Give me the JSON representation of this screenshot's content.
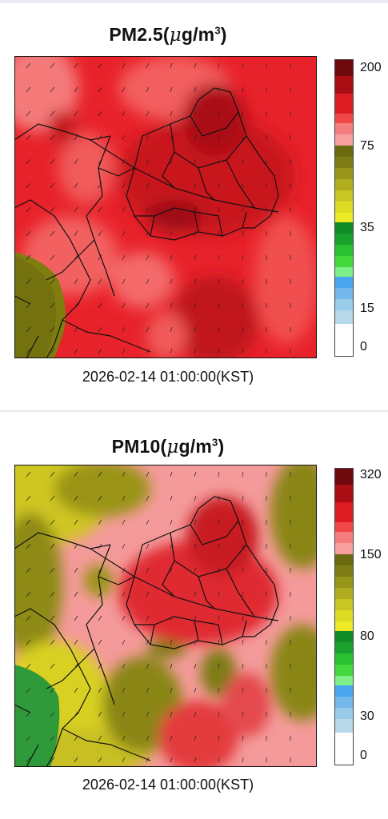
{
  "panels": [
    {
      "title_main": "PM2.5(",
      "title_mu": "μ",
      "title_unit": "g/m",
      "title_sup": "3",
      "title_close": ")",
      "timestamp": "2026-02-14 01:00:00(KST)",
      "scale_ticks": [
        "200",
        "75",
        "35",
        "15",
        "0"
      ],
      "colors": {
        "base": "#e8222a",
        "dark": "#b4121a",
        "light": "#f58a8a",
        "olive": "#7f7d10",
        "green": "#5f7a20"
      }
    },
    {
      "title_main": "PM10(",
      "title_mu": "μ",
      "title_unit": "g/m",
      "title_sup": "3",
      "title_close": ")",
      "timestamp": "2026-02-14 01:00:00(KST)",
      "scale_ticks": [
        "320",
        "150",
        "80",
        "30",
        "0"
      ],
      "colors": {
        "base": "#f49a9a",
        "red": "#e4242c",
        "olive": "#8a8a18",
        "yellow": "#d8d224",
        "green": "#2f9a3a"
      }
    }
  ]
}
